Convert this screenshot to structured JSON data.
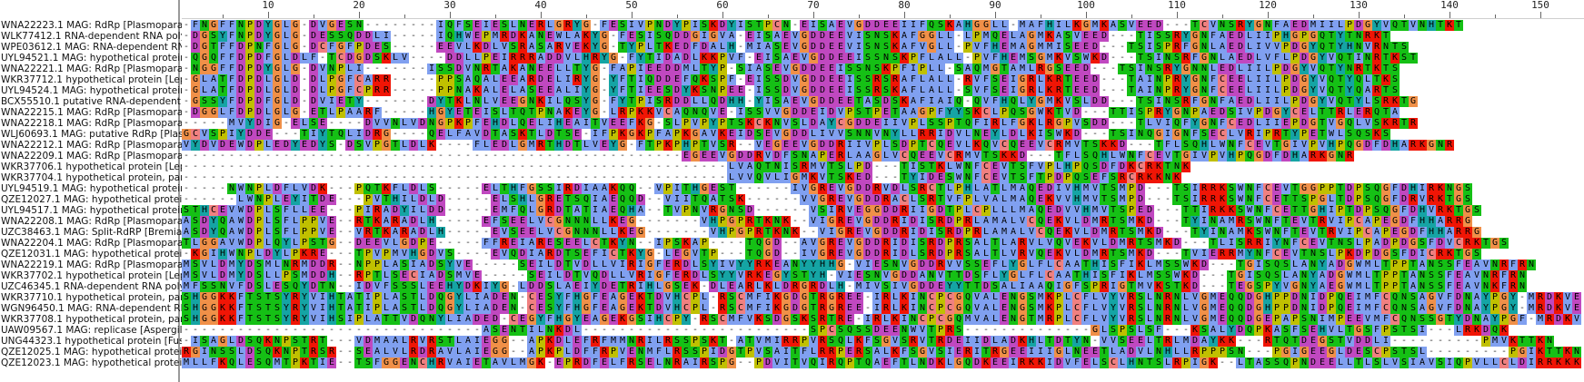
{
  "app": {
    "view": "multiple-sequence-alignment",
    "color_scheme": "clustalx"
  },
  "ruler": {
    "labels": [
      "10",
      "20",
      "30",
      "40",
      "50",
      "60",
      "70",
      "80",
      "90",
      "100",
      "110",
      "120",
      "130",
      "140",
      "150"
    ],
    "first_label_position": 10,
    "label_step": 10
  },
  "colors": {
    "hydrophobic": "#80a0f0",
    "positive": "#f01505",
    "negative": "#c048c0",
    "polar": "#15c015",
    "cysteine": "#f08080",
    "glycine": "#f09048",
    "proline": "#c0c000",
    "aromatic": "#15a4a4",
    "gap_text": "#333333"
  },
  "sequences": [
    {
      "name": "WNA22223.1 MAG: RdRp [Plasmopara",
      "seq": "-FNGFFNPDYGLG-DVGESN--------IQFSEIESLNERLGRYG-FESIVPNDYPISKDYISTPCN-EISAEVGDDEEIIFQSKAHGGLL-MAFHILKGMKASVEED---TCVNSRYGNFAEDMIILPDGYVQTVNHTKT"
    },
    {
      "name": "WLK77412.1 RNA-dependent RNA poly",
      "seq": "-DGSYFNPDYGLG-DESSQDDLI-----IQHWEPMRDKANEWLAKYG-FESISQDDGIGVA-EISAEVGDDEEVISNSKAFGGLL-LPMQELAGMKASVEED---TISSRYGNFAEDLIIPHGPGQTYTNRKT"
    },
    {
      "name": "WPE03612.1 MAG: RNA-dependent RN",
      "seq": "-DGTFFDPNFGLG-DCFGFPDES-----EEVLKDLVSRASARVEKYG-TYPLTKEDFDALH-MIASEVGDDEEVISNSKAFVGLL-PVFHEMAGMMISEED---TSISPRFGNLAEDLIVVPDGYQTYHNVRNTS"
    },
    {
      "name": "UYL94521.1 MAG: hypothetical protein",
      "seq": "-QGQFFDPDFGLDLF-TCDGDSKLV----DDLLPEIRRRADDVLHRYG-FYTIDADLKKPVF-EISAEVGDDEEISSNSKPFLALL-PVFHEMSGMKVSWKD---TSINSRFGNLAEDLVFLPDGYVQTINRTKST"
    },
    {
      "name": "WNA22221.1 MAG: RdRp [Plasmopara",
      "seq": "-NGGFFDPDYGLG-DVNPLI-------ISSDVNRTAKANEELLTYG-FAPIEEDDMLTYP-SIASEVGDDEEISSNSKPFIPLL-SAQMGTAMLRGSEED---TSINSRYGNNLEDLIILPDGYVQTYNRTKTS"
    },
    {
      "name": "WKR37712.1 hypothetical protein [Lep",
      "seq": "-GLATFDPDLGLD-DLPGFCARR-----PPSAQALEEARDELIRYG-YFTIQDDEFQKSPF-EISSDVGDDEEISSRSRAFLALL-RVFSEIGRLKRTEED---TAINPRYGNFCEELIILPDGYVQTYQLTKS"
    },
    {
      "name": "UYL94524.1 MAG: hypothetical protein",
      "seq": "-GLATFDPDLGLD-DLPGFCPRR-----PPNAKALELASEEALIYG-YFTIEESDYKSNPEE-ISSDVGDDEEISSRSKAFLALL-SVFSEIGRLKRTEED---TAINPRYGNFCEELIILPDGYVQTYQARTS"
    },
    {
      "name": "BCX55510.1 putative RNA-dependent F",
      "seq": "-GSSYFDPDFGLD-DVIETY-------DYTKLNLVEEGNKILQSYG-FYTPISRDDLLQDHH-YISAEVGDDEETASDSKAFIAIQ-QVFHQLYGMKVSLDD---TSINSRFGNFAEDLIILPDGYVQTYLSRKTG"
    },
    {
      "name": "WNA22215.1 MAG: RdRp [Plasmopara",
      "seq": "-DGGLFDPDLGLG-ETLPAARF-----HGYETEISLTQTPNAKEYG-LRPKKVCAQNQVE-ISSVVGDDEIDVPSTPETAAGPFYYSKCLPQSGWKTVD---TTISPRYGNPAEDSIVPDGYCELTTRLERQTA"
    },
    {
      "name": "WNA22218.1 MAG: RdRp [Plasmopara",
      "seq": "-----MVYDIG-ELSE----DVVNLVDNGPKPFEHDLQELIHEAITVEEFKG-SLPVPYPTSKCKNVSLDAYCGDDEIIVPLSSPTQFIRLFGKLRGPVSDD---TLVIQFYGNFCEDLIIEPDGTVGQLVSKRTR"
    },
    {
      "name": "WLJ60693.1 MAG: putative RdRp [Plasr",
      "seq": "GCVSPIYDDE---TIYTQLIDRG----QELFAVDTASKTLDTSE-IFPKGKPFAPKGAVKEIDSEVGDDLIVVSNNVNYLLRRIDVLNEYLDLKISWKD---TSINQGIGNFSECLVRIPRTYPETWLSQSKS"
    },
    {
      "name": "WNA22212.1 MAG: RdRp [Plasmopara",
      "seq": "VYDVDEWDPLEDYEDYS-DSVPGTLDLK----FLEDLGMRTHDTLVEYG-FTPKPHPTVSR--VEGEEVGDDRIIVPLSDPTCQEVLKQVCQEEVCRMVTSKKD---TFLSQHLWNFCEVTGIVPVHPQGDFDHARKGNR"
    },
    {
      "name": "WNA22209.1 MAG: RdRp [Plasmopara",
      "seq": "-------------------------------------------------------EGEEVGDDRVDFSNAPERLAAGLVCQEEVCRMVTSKKD---TFLSQHLWNFCEVTGIVPVHPQGDFDHARKGNR"
    },
    {
      "name": "WKR37706.1 hypothetical protein [Lep",
      "seq": "------------------------------------------------------------LVAQTNISRMVTSLPD---TISTKLWNFCEVTSFVPLHPQSDFDKCRKTNK"
    },
    {
      "name": "WKR37704.1 hypothetical protein, par",
      "seq": "------------------------------------------------------------LVVQVLIGMKVTSKED---TYIDESWNFCEVTSFTPDPQSEFSRCRKKNK"
    },
    {
      "name": "UYL94519.1 MAG: hypothetical protein",
      "seq": "-----NWNPLDFLVDK---PQTKFLDLS-----ELTHFGSSIRDIAAKQQ--VPITHGEST------IVGREVGDDRVDLSRCTLPHLATLMAQEDIVHMVTSMPD---TSIRRKSWNFCEVTGGPPTDPSQGFDHIRKNGS"
    },
    {
      "name": "QZE12027.1 MAG: hypothetical protei",
      "seq": "------LWNPLEYITDE---PVTHILDLD-----ELSHLGRETSQIAEQQD--VIITQATSK------VVGREVGDDRACLSRTVFPLVALMAQEKVVHMVTSMPD---TSIRRKSWNFCETTSPGLTDPSQGFDRVRKTGS"
    },
    {
      "name": "UYL94517.1 MAG: hypothetical protein",
      "seq": "STHCEVWDPLSFLLEE---PIRADYILDD-----EMFQLGRDTATIAEQHA--TVPNVRGNSD------VSIRVEGGDDRIIGDTPLCPLLLMAQEDVVHMVTSPED---TTIRKKSWNFCETTGHIPTDPSQGFDHVRKTGS"
    },
    {
      "name": "WNA22208.1 MAG: RdRp [Plasmopara",
      "seq": "ASDYQAWDPLSFLPPVE--RTKARADLH-----EFSEELVCGNNNLLKEG-------VHPGPRTKNK--VIGREVGDDRIDISRDPRLAMALVCQEKVLDMRTSMKD---TYINAMRSWNFTEVTRVIPCAPEGDFHHARRG"
    },
    {
      "name": "UZC38463.1 MAG: Split-RdRP [Bremia",
      "seq": "ASDYQAWDPLSFLPPVE--VRTKARADLH-----EVSEELVCGNNNLLKEG-------VHPGPRTKNK--VIGREVGDDRIDISRDPRLAMALVCQEKVLDMRTSMKD---TYINAMKSWNFTEVTRVIPCAPEGDFHHARRG"
    },
    {
      "name": "WNA22204.1 MAG: RdRp [Plasmopara",
      "seq": "TLGGAVWDPLQYLPSTG--DEEVLGDPE-----FFREIARESEELCTKYN--IPSKAP----TQGD--AVGREVGDDRIDISRDPRSALTLARVLVQVEKVLDMRTSMKD---TLISRRIYNFCEVTNSLPADPDGSFDVCRKTGS"
    },
    {
      "name": "QZE12031.1 MAG: hypothetical protei",
      "seq": "-KGIHWNPLDYLPKRE---TPVPMVHGDVS----EVQDIARDTSEFICTKYG-LEGVTP---TQGD--IVGREVGDDRIDLSRDPRSALTLVRVQEKVLDMRTSMKD---TVIERRMYNFCEVTNSLPKDPDGSFDICRKTGS"
    },
    {
      "name": "WNA22219.1 MAG: RdRp [Plasmopara",
      "seq": "MSVLDMYDSMLNRMDDR--NPPLASIADSYVE-----SEILDTVDLLVIRIGFERDLSYIVYYRKEANYYHHG-VIESNVGDDRVVSSEFLYGLFLCAATHISFIKLMSSWKD---TGISQSLANYADGWMLTPPTANSSFEAVNRFRN"
    },
    {
      "name": "WKR37702.1 hypothetical protein [Lep",
      "seq": "MSVLDMYDSLLPSMDDH--RPTLSECIADSMVE-----SEILDTVQDLLVRIGFERDLSYYVRKEGYSTYH-VIESNVGDDANVTTDSFLYGLFLCAATHISFIKLMSSWKD---TGISQSLANYADGWMLTPPTANSSFEAVNRFRN"
    },
    {
      "name": "UZC46345.1 RNA-dependent RNA poly",
      "seq": "MFSSNVFDSLESQYDTN--IDVFSSSLEEHYDKIYG-LDDSLAEIYDETRIHLGSEK-DLEARLKLDRGRDLH-MIVSIVGDDEYYTTDSALIAAQIGFSPRIGTMVKSTKD---TEGSPYVGNYAEGWMLTPPTANSSFEAVNKFRN"
    },
    {
      "name": "WKR37710.1 hypothetical protein, par",
      "seq": "SHGGKKFTSTSYRYVIHTATIPLASTLDQGYLIADEN-CESYFHGFEAGEKTDVHCPL-RSCMFIKGDGTRGREE-IRLKINCPCGQVALENGSMKPLCFLVYVRSLNRNLVGMEQQDGHPPDNIDPQEIMFCQNSAGVFDNAYPGY-MRDKVEE"
    },
    {
      "name": "WGN96450.1 MAG: RNA-dependent RN",
      "seq": "SHGGKKFTSTSYRYVIHTATIPLASTLDQGYLIADEN-CESYFHGFEAGEKTDVHCPL-RSCMFIKGDGTRGREE-IRLKINCPCGQVALENGSMKPLCFLVYVRSLNRNLVGMEQQDGHPPDNIDPQEIMFCQNSAGVFDNAYPGY-MRDKVEE"
    },
    {
      "name": "WKR37708.1 hypothetical protein, par",
      "seq": "SHGGKKFTSTSYRYVIHSIPLATTVDQNYLIADED-CEGYFHGYEAGEKGSIHCPY-RSCMFVKSDGSKSRTRE-IRLKINCPCGQMVALENGTMRPLCFLVYVRSLNRNLVGMEQQDGEPAPSNIMPEEVMFCQNSSGTYDNAYPGF-MRDKVEE"
    },
    {
      "name": "UAW09567.1 MAG: replicase [Aspergill",
      "seq": "---------------------------------ASENTILNKDL-------------------------SPCSQSSDEENWVTPRS--------------GLSPSLSF---KSALYDQPKASFSEHVLTGSFPSTSI---LRKDQK"
    },
    {
      "name": "UNG44323.1 hypothetical protein [Fus",
      "seq": "-ISAGLDSQKNPSTRT---VDMAALRVRSTLAIEGG--APKDLEFRFMMNRILRSSPSKT-ATVMIRRPVRSQLKFSGVSRVTRDEIIDLADKHLTDTYN-VVSEELTRLMDAYKK---RTQTDEGSTVDDLI----------PMVKTTKN"
    },
    {
      "name": "QZE12025.1 MAG: hypothetical protei",
      "seq": "RGINSSLDSQKNPTRSR--SEALVLRDRAVLAIEGG--APKPLDFFRPVENMFLRSSPIDGTPVSAITFLRRPERSALKFSGVSIERITRGEEIIIGLNEETLADVLNHLLRPPPSN---PGIGEEGLDESCPSTSL---------PGIKTTKN"
    },
    {
      "name": "QZE12023.1 MAG: hypothetical protei",
      "seq": "MLLFKQLESQMTPKTIE--TSFGGENCHRVAIETAVLMGK-EPRDFELFRSELNRAIRSPG--PDVITVQIRQPTQAEFTLNDKLGQDKEEIRKKIDVFELSCLHNTSLRPIGK--LTASSQPNDEELLTLSLVSIAVSIQPVLLCLDIRRKKKKKKNR"
    }
  ]
}
